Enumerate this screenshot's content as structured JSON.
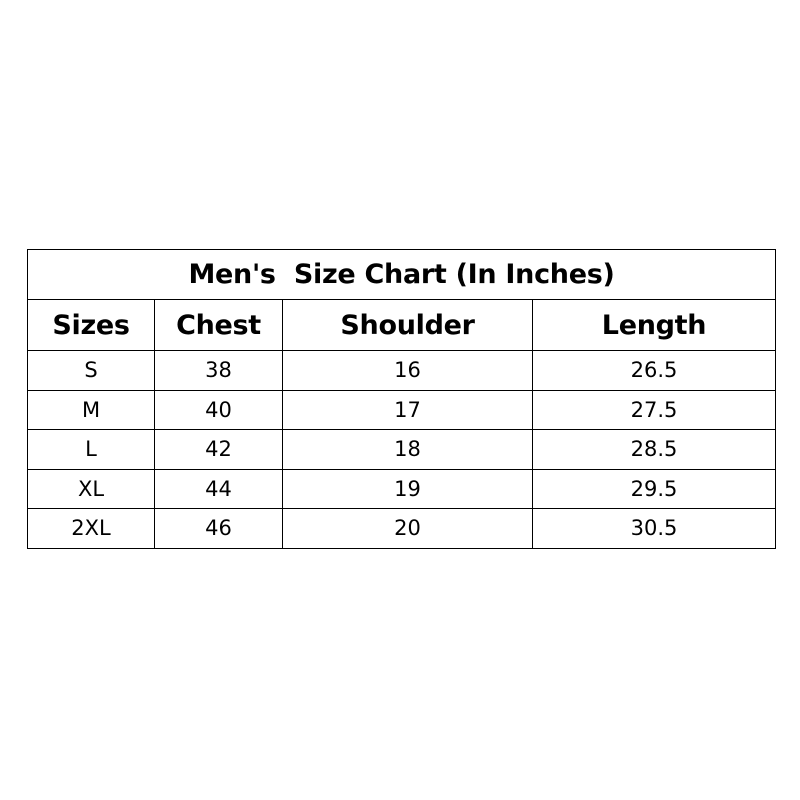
{
  "title": "Men's  Size Chart (In Inches)",
  "columns": [
    "Sizes",
    "Chest",
    "Shoulder",
    "Length"
  ],
  "rows": [
    [
      "S",
      "38",
      "16",
      "26.5"
    ],
    [
      "M",
      "40",
      "17",
      "27.5"
    ],
    [
      "L",
      "42",
      "18",
      "28.5"
    ],
    [
      "XL",
      "44",
      "19",
      "29.5"
    ],
    [
      "2XL",
      "46",
      "20",
      "30.5"
    ]
  ]
}
